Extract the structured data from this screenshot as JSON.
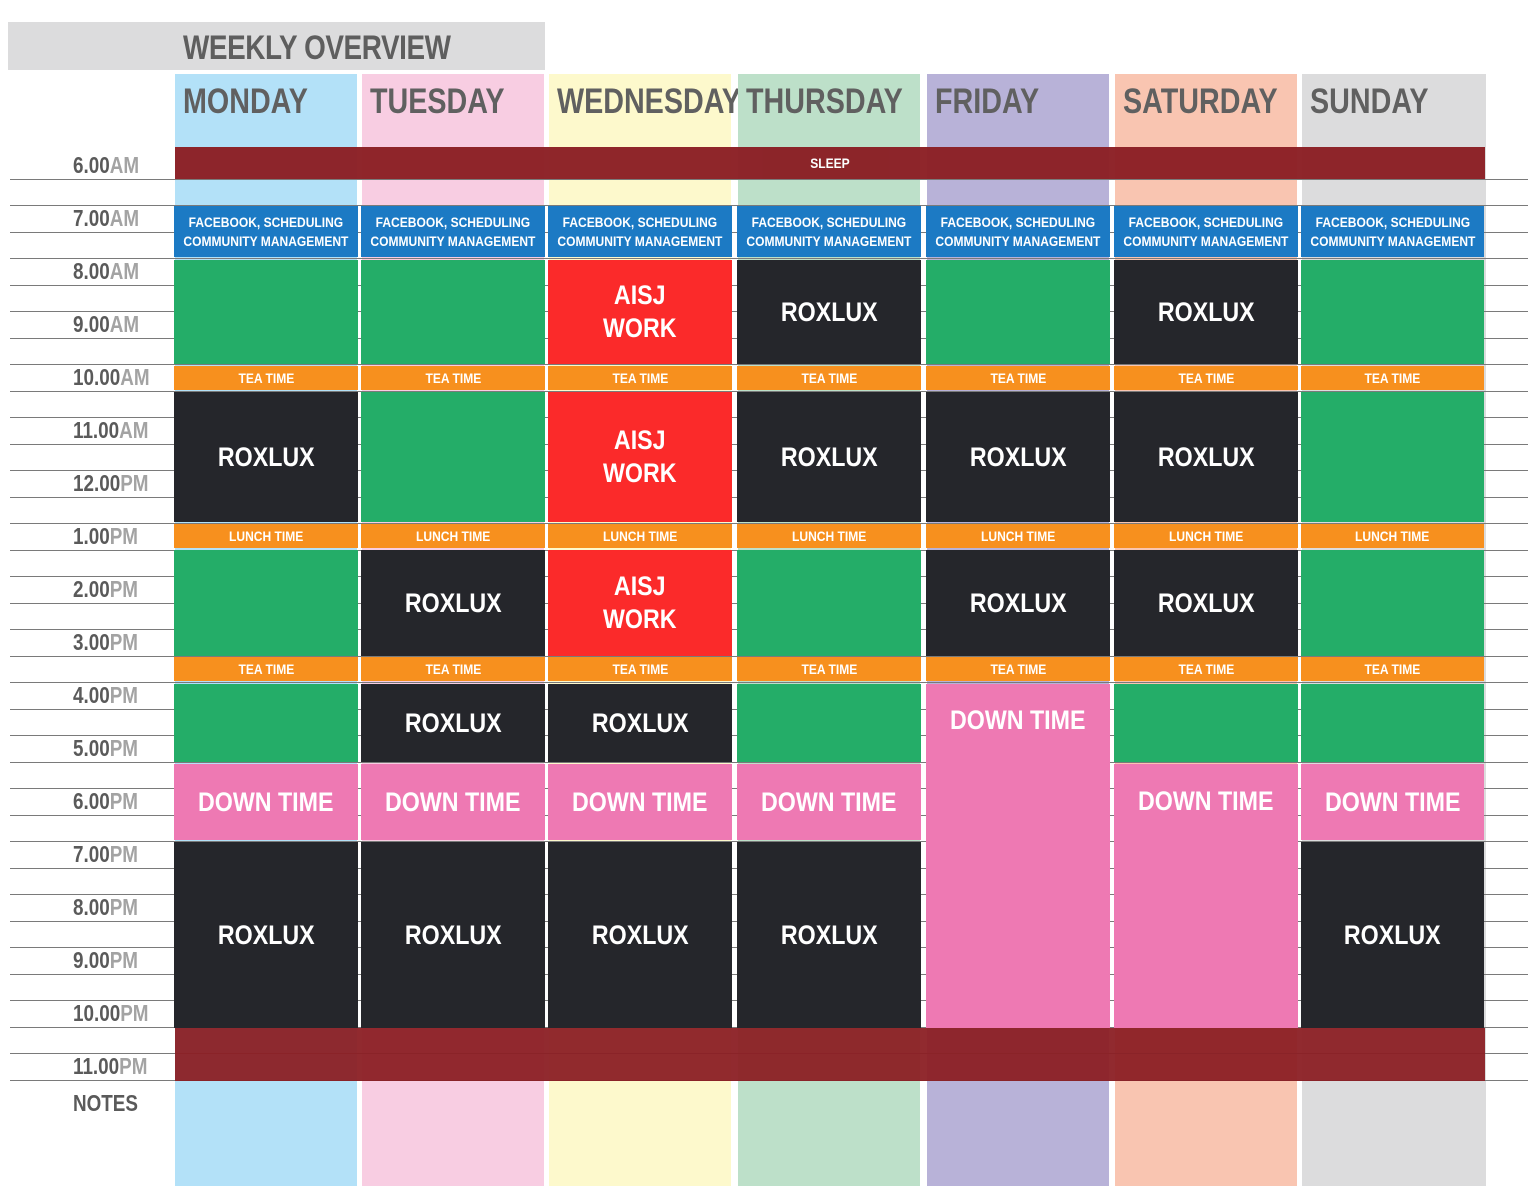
{
  "title": "WEEKLY OVERVIEW",
  "notes_label": "NOTES",
  "days": [
    {
      "name": "MONDAY",
      "color": "#b3e1f8"
    },
    {
      "name": "TUESDAY",
      "color": "#f8cde2"
    },
    {
      "name": "WEDNESDAY",
      "color": "#fdf9cc"
    },
    {
      "name": "THURSDAY",
      "color": "#bde0c9"
    },
    {
      "name": "FRIDAY",
      "color": "#b8b2d8"
    },
    {
      "name": "SATURDAY",
      "color": "#f9c5b1"
    },
    {
      "name": "SUNDAY",
      "color": "#dcdcdd"
    }
  ],
  "times": [
    {
      "hour": "6.00",
      "ampm": "AM"
    },
    {
      "hour": "7.00",
      "ampm": "AM"
    },
    {
      "hour": "8.00",
      "ampm": "AM"
    },
    {
      "hour": "9.00",
      "ampm": "AM"
    },
    {
      "hour": "10.00",
      "ampm": "AM"
    },
    {
      "hour": "11.00",
      "ampm": "AM"
    },
    {
      "hour": "12.00",
      "ampm": "PM"
    },
    {
      "hour": "1.00",
      "ampm": "PM"
    },
    {
      "hour": "2.00",
      "ampm": "PM"
    },
    {
      "hour": "3.00",
      "ampm": "PM"
    },
    {
      "hour": "4.00",
      "ampm": "PM"
    },
    {
      "hour": "5.00",
      "ampm": "PM"
    },
    {
      "hour": "6.00",
      "ampm": "PM"
    },
    {
      "hour": "7.00",
      "ampm": "PM"
    },
    {
      "hour": "8.00",
      "ampm": "PM"
    },
    {
      "hour": "9.00",
      "ampm": "PM"
    },
    {
      "hour": "10.00",
      "ampm": "PM"
    },
    {
      "hour": "11.00",
      "ampm": "PM"
    }
  ],
  "labels": {
    "sleep": "SLEEP",
    "social_line1": "FACEBOOK, SCHEDULING",
    "social_line2": "COMMUNITY MANAGEMENT",
    "tea": "TEA TIME",
    "lunch": "LUNCH TIME",
    "roxlux": "ROXLUX",
    "aisj_line1": "AISJ",
    "aisj_line2": "WORK",
    "down": "DOWN TIME"
  },
  "colors": {
    "sleep": "#8b1f24",
    "social": "#1c7ac4",
    "tea": "#f7901e",
    "green": "#24ad68",
    "dark": "#25262b",
    "aisj": "#fb2a2a",
    "down": "#ee79b3"
  }
}
